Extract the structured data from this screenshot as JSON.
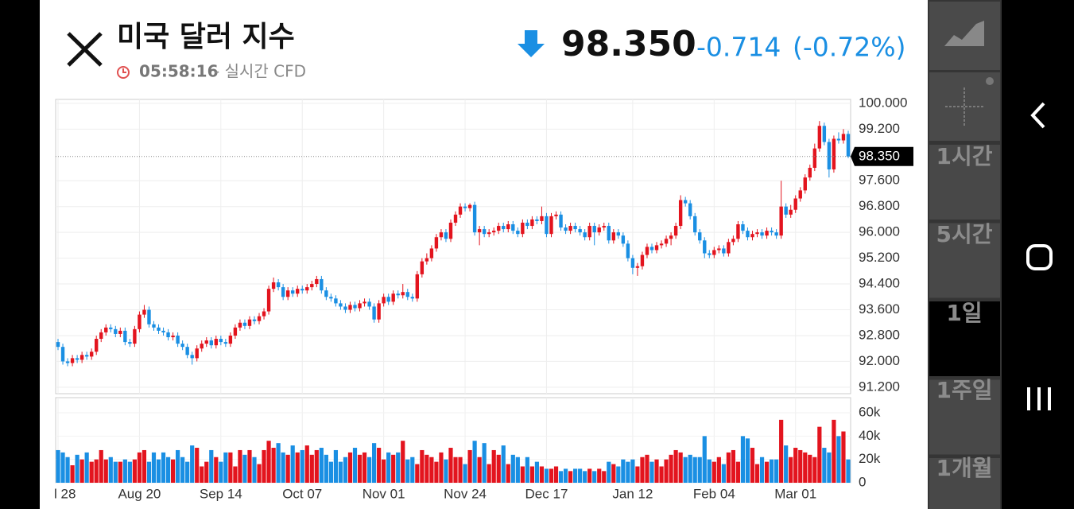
{
  "header": {
    "title": "미국 달러 지수",
    "time": "05:58:16",
    "time_note": "- 실시간 CFD",
    "price": "98.350",
    "change": "-0.714",
    "change_pct": "(-0.72%)"
  },
  "side_buttons": {
    "labels": [
      "1시간",
      "5시간",
      "1일",
      "1주일",
      "1개월"
    ],
    "selected": 2
  },
  "chart_data": [
    {
      "type": "candlestick",
      "up_color": "#e3141e",
      "down_color": "#1a8fe3",
      "xlim": [
        -0.5,
        165.5
      ],
      "xticks": [
        {
          "value": 0,
          "label": "l 28"
        },
        {
          "value": 17,
          "label": "Aug 20"
        },
        {
          "value": 34,
          "label": "Sep 14"
        },
        {
          "value": 51,
          "label": "Oct 07"
        },
        {
          "value": 68,
          "label": "Nov 01"
        },
        {
          "value": 85,
          "label": "Nov 24"
        },
        {
          "value": 102,
          "label": "Dec 17"
        },
        {
          "value": 120,
          "label": "Jan 12"
        },
        {
          "value": 137,
          "label": "Feb 04"
        },
        {
          "value": 154,
          "label": "Mar 01"
        }
      ],
      "ylim": [
        91.0,
        100.12
      ],
      "yticks": [
        {
          "value": 91.2,
          "label": "91.200"
        },
        {
          "value": 92,
          "label": "92.000"
        },
        {
          "value": 92.8,
          "label": "92.800"
        },
        {
          "value": 93.6,
          "label": "93.600"
        },
        {
          "value": 94.4,
          "label": "94.400"
        },
        {
          "value": 95.2,
          "label": "95.200"
        },
        {
          "value": 96,
          "label": "96.000"
        },
        {
          "value": 96.8,
          "label": "96.800"
        },
        {
          "value": 97.6,
          "label": "97.600"
        },
        {
          "value": 99.2,
          "label": "99.200"
        },
        {
          "value": 100,
          "label": "100.000"
        }
      ],
      "ohlc": [
        [
          92.6,
          92.7,
          92.35,
          92.45
        ],
        [
          92.45,
          92.55,
          91.9,
          92.0
        ],
        [
          92.0,
          92.1,
          91.85,
          91.95
        ],
        [
          91.95,
          92.2,
          91.85,
          92.1
        ],
        [
          92.1,
          92.2,
          91.95,
          92.05
        ],
        [
          92.05,
          92.3,
          91.95,
          92.2
        ],
        [
          92.2,
          92.3,
          92.05,
          92.15
        ],
        [
          92.15,
          92.4,
          92.05,
          92.3
        ],
        [
          92.3,
          92.8,
          92.2,
          92.7
        ],
        [
          92.7,
          93.0,
          92.6,
          92.9
        ],
        [
          92.9,
          93.15,
          92.8,
          93.05
        ],
        [
          93.05,
          93.15,
          92.9,
          93.0
        ],
        [
          93.0,
          93.1,
          92.75,
          92.85
        ],
        [
          92.85,
          93.05,
          92.75,
          92.95
        ],
        [
          92.95,
          93.05,
          92.5,
          92.6
        ],
        [
          92.6,
          92.7,
          92.45,
          92.55
        ],
        [
          92.55,
          93.1,
          92.45,
          93.0
        ],
        [
          93.0,
          93.55,
          92.9,
          93.45
        ],
        [
          93.45,
          93.75,
          93.35,
          93.6
        ],
        [
          93.6,
          93.7,
          93.05,
          93.15
        ],
        [
          93.15,
          93.25,
          92.95,
          93.05
        ],
        [
          93.05,
          93.15,
          92.85,
          92.95
        ],
        [
          92.95,
          93.05,
          92.8,
          92.9
        ],
        [
          92.9,
          93.0,
          92.65,
          92.75
        ],
        [
          92.75,
          92.9,
          92.65,
          92.8
        ],
        [
          92.8,
          92.9,
          92.45,
          92.55
        ],
        [
          92.55,
          92.65,
          92.35,
          92.45
        ],
        [
          92.45,
          92.55,
          92.1,
          92.2
        ],
        [
          92.2,
          92.3,
          91.9,
          92.1
        ],
        [
          92.1,
          92.5,
          92.0,
          92.4
        ],
        [
          92.4,
          92.65,
          92.3,
          92.55
        ],
        [
          92.55,
          92.75,
          92.45,
          92.65
        ],
        [
          92.65,
          92.75,
          92.4,
          92.5
        ],
        [
          92.5,
          92.8,
          92.4,
          92.7
        ],
        [
          92.7,
          92.8,
          92.5,
          92.6
        ],
        [
          92.6,
          92.7,
          92.45,
          92.55
        ],
        [
          92.55,
          92.9,
          92.45,
          92.8
        ],
        [
          92.8,
          93.15,
          92.7,
          93.05
        ],
        [
          93.05,
          93.3,
          92.95,
          93.2
        ],
        [
          93.2,
          93.3,
          93.0,
          93.1
        ],
        [
          93.1,
          93.4,
          93.0,
          93.3
        ],
        [
          93.3,
          93.4,
          93.15,
          93.25
        ],
        [
          93.25,
          93.5,
          93.15,
          93.4
        ],
        [
          93.4,
          93.65,
          93.3,
          93.55
        ],
        [
          93.55,
          94.35,
          93.45,
          94.25
        ],
        [
          94.25,
          94.6,
          94.15,
          94.45
        ],
        [
          94.45,
          94.55,
          94.2,
          94.3
        ],
        [
          94.3,
          94.4,
          93.9,
          94.0
        ],
        [
          94.0,
          94.3,
          93.9,
          94.2
        ],
        [
          94.2,
          94.3,
          94.0,
          94.1
        ],
        [
          94.1,
          94.35,
          94.0,
          94.25
        ],
        [
          94.25,
          94.35,
          94.1,
          94.2
        ],
        [
          94.2,
          94.4,
          94.1,
          94.3
        ],
        [
          94.3,
          94.5,
          94.2,
          94.4
        ],
        [
          94.4,
          94.65,
          94.3,
          94.55
        ],
        [
          94.55,
          94.65,
          94.1,
          94.2
        ],
        [
          94.2,
          94.3,
          93.9,
          94.0
        ],
        [
          94.0,
          94.1,
          93.85,
          93.95
        ],
        [
          93.95,
          94.05,
          93.7,
          93.8
        ],
        [
          93.8,
          93.9,
          93.6,
          93.7
        ],
        [
          93.7,
          93.8,
          93.5,
          93.6
        ],
        [
          93.6,
          93.85,
          93.5,
          93.75
        ],
        [
          93.75,
          93.85,
          93.55,
          93.65
        ],
        [
          93.65,
          93.9,
          93.55,
          93.8
        ],
        [
          93.8,
          93.95,
          93.7,
          93.85
        ],
        [
          93.85,
          93.95,
          93.6,
          93.7
        ],
        [
          93.7,
          93.8,
          93.2,
          93.3
        ],
        [
          93.3,
          93.9,
          93.2,
          93.8
        ],
        [
          93.8,
          94.1,
          93.7,
          94.0
        ],
        [
          94.0,
          94.1,
          93.75,
          93.85
        ],
        [
          93.85,
          94.2,
          93.75,
          94.1
        ],
        [
          94.1,
          94.2,
          93.95,
          94.05
        ],
        [
          94.05,
          94.4,
          93.95,
          94.15
        ],
        [
          94.15,
          94.25,
          93.9,
          94.0
        ],
        [
          94.0,
          94.1,
          93.85,
          93.95
        ],
        [
          93.95,
          94.8,
          93.85,
          94.7
        ],
        [
          94.7,
          95.2,
          94.6,
          95.1
        ],
        [
          95.1,
          95.35,
          95.0,
          95.2
        ],
        [
          95.2,
          95.6,
          95.1,
          95.5
        ],
        [
          95.5,
          95.95,
          95.4,
          95.85
        ],
        [
          95.85,
          96.1,
          95.75,
          96.0
        ],
        [
          96.0,
          96.1,
          95.7,
          95.8
        ],
        [
          95.8,
          96.4,
          95.7,
          96.3
        ],
        [
          96.3,
          96.65,
          96.2,
          96.55
        ],
        [
          96.55,
          96.9,
          96.45,
          96.8
        ],
        [
          96.8,
          96.9,
          96.65,
          96.75
        ],
        [
          96.75,
          96.9,
          96.65,
          96.85
        ],
        [
          96.85,
          96.95,
          95.9,
          96.0
        ],
        [
          96.0,
          96.2,
          95.6,
          96.1
        ],
        [
          96.1,
          96.2,
          95.85,
          95.95
        ],
        [
          95.95,
          96.1,
          95.85,
          96.0
        ],
        [
          96.0,
          96.15,
          95.9,
          96.05
        ],
        [
          96.05,
          96.3,
          95.95,
          96.2
        ],
        [
          96.2,
          96.3,
          96.0,
          96.1
        ],
        [
          96.1,
          96.35,
          96.0,
          96.25
        ],
        [
          96.25,
          96.35,
          95.95,
          96.05
        ],
        [
          96.05,
          96.15,
          95.85,
          95.95
        ],
        [
          95.95,
          96.4,
          95.85,
          96.3
        ],
        [
          96.3,
          96.4,
          96.1,
          96.2
        ],
        [
          96.2,
          96.5,
          96.1,
          96.4
        ],
        [
          96.4,
          96.5,
          96.25,
          96.35
        ],
        [
          96.35,
          96.8,
          96.25,
          96.5
        ],
        [
          96.5,
          96.6,
          95.85,
          95.95
        ],
        [
          95.95,
          96.6,
          95.85,
          96.5
        ],
        [
          96.5,
          96.65,
          96.4,
          96.55
        ],
        [
          96.55,
          96.65,
          96.05,
          96.15
        ],
        [
          96.15,
          96.25,
          95.95,
          96.05
        ],
        [
          96.05,
          96.3,
          95.95,
          96.2
        ],
        [
          96.2,
          96.3,
          96.0,
          96.1
        ],
        [
          96.1,
          96.2,
          95.9,
          96.0
        ],
        [
          96.0,
          96.1,
          95.75,
          95.85
        ],
        [
          95.85,
          96.3,
          95.75,
          96.2
        ],
        [
          96.2,
          96.3,
          95.6,
          96.0
        ],
        [
          96.0,
          96.25,
          95.9,
          96.15
        ],
        [
          96.15,
          96.3,
          96.05,
          96.2
        ],
        [
          96.2,
          96.3,
          95.65,
          95.75
        ],
        [
          95.75,
          96.1,
          95.65,
          96.0
        ],
        [
          96.0,
          96.1,
          95.8,
          95.9
        ],
        [
          95.9,
          96.0,
          95.55,
          95.65
        ],
        [
          95.65,
          95.75,
          95.1,
          95.2
        ],
        [
          95.2,
          95.3,
          94.7,
          94.9
        ],
        [
          94.9,
          95.05,
          94.65,
          94.95
        ],
        [
          94.95,
          95.4,
          94.85,
          95.3
        ],
        [
          95.3,
          95.65,
          95.2,
          95.55
        ],
        [
          95.55,
          95.65,
          95.35,
          95.45
        ],
        [
          95.45,
          95.7,
          95.35,
          95.6
        ],
        [
          95.6,
          95.75,
          95.5,
          95.65
        ],
        [
          95.65,
          95.9,
          95.55,
          95.8
        ],
        [
          95.8,
          96.0,
          95.6,
          95.9
        ],
        [
          95.9,
          96.3,
          95.8,
          96.2
        ],
        [
          96.2,
          97.15,
          96.1,
          97.0
        ],
        [
          97.0,
          97.1,
          96.8,
          96.9
        ],
        [
          96.9,
          97.0,
          96.4,
          96.5
        ],
        [
          96.5,
          96.6,
          95.9,
          96.0
        ],
        [
          96.0,
          96.1,
          95.65,
          95.75
        ],
        [
          95.75,
          95.85,
          95.2,
          95.35
        ],
        [
          95.35,
          95.45,
          95.2,
          95.3
        ],
        [
          95.3,
          95.55,
          95.2,
          95.45
        ],
        [
          95.45,
          95.6,
          95.35,
          95.5
        ],
        [
          95.5,
          95.6,
          95.25,
          95.35
        ],
        [
          95.35,
          95.8,
          95.25,
          95.7
        ],
        [
          95.7,
          95.9,
          95.6,
          95.8
        ],
        [
          95.8,
          96.35,
          95.7,
          96.25
        ],
        [
          96.25,
          96.35,
          95.95,
          96.05
        ],
        [
          96.05,
          96.15,
          95.75,
          95.85
        ],
        [
          95.85,
          96.05,
          95.75,
          95.95
        ],
        [
          95.95,
          96.1,
          95.85,
          96.0
        ],
        [
          96.0,
          96.1,
          95.8,
          95.9
        ],
        [
          95.9,
          96.15,
          95.8,
          96.05
        ],
        [
          96.05,
          96.15,
          95.9,
          96.0
        ],
        [
          96.0,
          96.1,
          95.8,
          95.9
        ],
        [
          95.9,
          97.6,
          95.8,
          96.8
        ],
        [
          96.8,
          96.9,
          96.45,
          96.55
        ],
        [
          96.55,
          96.85,
          96.45,
          96.7
        ],
        [
          96.7,
          97.15,
          96.6,
          97.05
        ],
        [
          97.05,
          97.4,
          96.95,
          97.3
        ],
        [
          97.3,
          97.8,
          97.2,
          97.7
        ],
        [
          97.7,
          98.1,
          97.6,
          98.0
        ],
        [
          98.0,
          98.75,
          97.9,
          98.6
        ],
        [
          98.6,
          99.45,
          98.5,
          99.3
        ],
        [
          99.3,
          99.4,
          98.7,
          98.8
        ],
        [
          98.8,
          98.9,
          97.7,
          97.95
        ],
        [
          97.95,
          99.0,
          97.85,
          98.9
        ],
        [
          98.9,
          99.1,
          98.75,
          98.85
        ],
        [
          98.85,
          99.2,
          98.75,
          99.05
        ],
        [
          99.05,
          99.15,
          98.3,
          98.35
        ]
      ]
    },
    {
      "type": "bar",
      "ylim": [
        0,
        73000
      ],
      "yticks": [
        {
          "value": 0,
          "label": "0"
        },
        {
          "value": 20000,
          "label": "20k"
        },
        {
          "value": 40000,
          "label": "40k"
        },
        {
          "value": 60000,
          "label": "60k"
        }
      ],
      "values": [
        28000,
        26000,
        22000,
        15000,
        24000,
        20000,
        26000,
        18000,
        20000,
        28000,
        20000,
        22000,
        18000,
        18000,
        20000,
        18000,
        20000,
        26000,
        28000,
        18000,
        26000,
        20000,
        26000,
        22000,
        20000,
        28000,
        22000,
        18000,
        32000,
        30000,
        14000,
        18000,
        28000,
        22000,
        18000,
        26000,
        26000,
        14000,
        28000,
        24000,
        28000,
        22000,
        16000,
        28000,
        36000,
        30000,
        34000,
        26000,
        24000,
        32000,
        26000,
        28000,
        32000,
        24000,
        28000,
        30000,
        24000,
        18000,
        28000,
        18000,
        22000,
        26000,
        30000,
        24000,
        26000,
        22000,
        34000,
        30000,
        20000,
        26000,
        24000,
        26000,
        36000,
        20000,
        22000,
        16000,
        28000,
        24000,
        22000,
        18000,
        26000,
        20000,
        30000,
        22000,
        22000,
        16000,
        28000,
        36000,
        22000,
        34000,
        16000,
        28000,
        24000,
        32000,
        16000,
        24000,
        22000,
        14000,
        22000,
        14000,
        18000,
        14000,
        12000,
        12000,
        14000,
        10000,
        12000,
        10000,
        12000,
        12000,
        10000,
        12000,
        10000,
        12000,
        10000,
        18000,
        16000,
        14000,
        20000,
        18000,
        20000,
        14000,
        22000,
        24000,
        18000,
        20000,
        14000,
        20000,
        24000,
        28000,
        26000,
        22000,
        24000,
        22000,
        22000,
        40000,
        20000,
        18000,
        22000,
        16000,
        26000,
        28000,
        18000,
        40000,
        38000,
        30000,
        16000,
        22000,
        18000,
        20000,
        20000,
        54000,
        32000,
        22000,
        30000,
        28000,
        26000,
        24000,
        22000,
        48000,
        30000,
        26000,
        54000,
        40000,
        44000,
        20000
      ]
    }
  ]
}
